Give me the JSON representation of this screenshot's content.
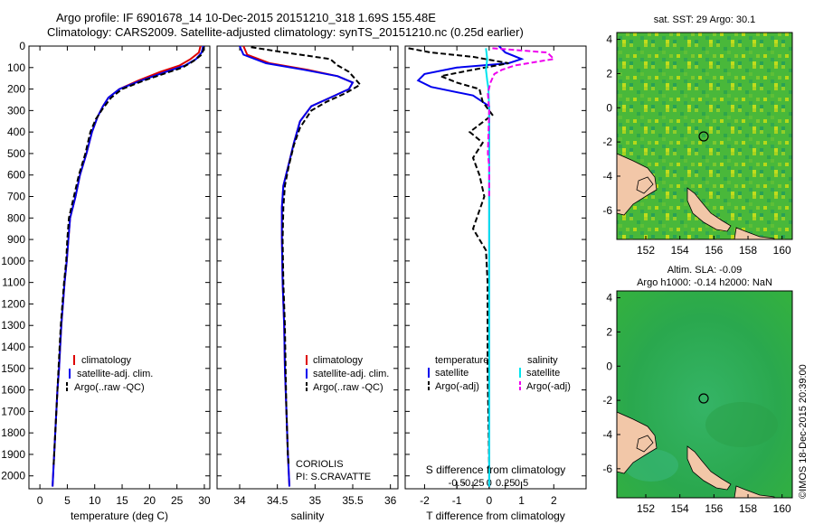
{
  "titles": {
    "line1": "Argo profile: IF 6901678_14 10-Dec-2015 20151210_318 1.69S 155.48E",
    "line2": "Climatology: CARS2009. Satellite-adjusted climatology: synTS_20151210.nc (0.25d earlier)"
  },
  "stamp": "©IMOS 18-Dec-2015 20:39:00",
  "colors": {
    "clim": "#dd0000",
    "sat": "#0000ee",
    "argo": "#000000",
    "sal_sat": "#00e5ee",
    "sal_argo": "#ee00ee",
    "land": "#f2c7a8",
    "sea": "#2fb14c"
  },
  "chart_data": [
    {
      "type": "line",
      "id": "temperature",
      "xlabel": "temperature (deg C)",
      "xlim": [
        -2,
        31
      ],
      "ylim": [
        0,
        2060
      ],
      "xticks": [
        0,
        5,
        10,
        15,
        20,
        25,
        30
      ],
      "yticks": [
        0,
        100,
        200,
        300,
        400,
        500,
        600,
        700,
        800,
        900,
        1000,
        1100,
        1200,
        1300,
        1400,
        1500,
        1600,
        1700,
        1800,
        1900,
        2000
      ],
      "legend": [
        "climatology",
        "satellite-adj. clim.",
        "Argo(..raw -QC)"
      ],
      "series": [
        {
          "name": "climatology",
          "style": "clim",
          "points": [
            [
              29.3,
              0
            ],
            [
              29.0,
              30
            ],
            [
              27.5,
              60
            ],
            [
              25.5,
              90
            ],
            [
              22,
              120
            ],
            [
              18,
              160
            ],
            [
              14.5,
              200
            ],
            [
              12.5,
              240
            ],
            [
              11.5,
              280
            ],
            [
              10.5,
              330
            ],
            [
              9.5,
              400
            ],
            [
              8.5,
              500
            ],
            [
              7.3,
              600
            ],
            [
              6.5,
              700
            ],
            [
              5.5,
              800
            ],
            [
              5.2,
              900
            ],
            [
              4.9,
              1000
            ],
            [
              4.5,
              1100
            ],
            [
              4.2,
              1200
            ],
            [
              3.9,
              1300
            ],
            [
              3.7,
              1400
            ],
            [
              3.5,
              1500
            ],
            [
              3.2,
              1600
            ],
            [
              3.0,
              1700
            ],
            [
              2.8,
              1800
            ],
            [
              2.6,
              1900
            ],
            [
              2.4,
              2000
            ],
            [
              2.3,
              2050
            ]
          ]
        },
        {
          "name": "satellite-adj. clim.",
          "style": "sat",
          "points": [
            [
              29.8,
              0
            ],
            [
              29.5,
              30
            ],
            [
              28.5,
              60
            ],
            [
              26.5,
              90
            ],
            [
              23,
              120
            ],
            [
              18.5,
              160
            ],
            [
              14.5,
              200
            ],
            [
              12.5,
              240
            ],
            [
              11.5,
              280
            ],
            [
              10.5,
              330
            ],
            [
              9.5,
              400
            ],
            [
              8.5,
              500
            ],
            [
              7.3,
              600
            ],
            [
              6.5,
              700
            ],
            [
              5.5,
              800
            ],
            [
              5.2,
              900
            ],
            [
              4.9,
              1000
            ],
            [
              4.5,
              1100
            ],
            [
              4.2,
              1200
            ],
            [
              3.9,
              1300
            ],
            [
              3.7,
              1400
            ],
            [
              3.5,
              1500
            ],
            [
              3.2,
              1600
            ],
            [
              3.0,
              1700
            ],
            [
              2.8,
              1800
            ],
            [
              2.6,
              1900
            ],
            [
              2.4,
              2000
            ],
            [
              2.3,
              2050
            ]
          ]
        },
        {
          "name": "Argo(..raw -QC)",
          "style": "argo",
          "points": [
            [
              29.9,
              5
            ],
            [
              29.8,
              20
            ],
            [
              29.5,
              40
            ],
            [
              28,
              70
            ],
            [
              26,
              100
            ],
            [
              22.5,
              130
            ],
            [
              19,
              160
            ],
            [
              15,
              200
            ],
            [
              13,
              240
            ],
            [
              11.5,
              290
            ],
            [
              10.2,
              340
            ],
            [
              9.2,
              400
            ],
            [
              8.3,
              500
            ],
            [
              7.1,
              600
            ],
            [
              6.2,
              700
            ],
            [
              5.3,
              800
            ],
            [
              5.0,
              900
            ],
            [
              4.8,
              1000
            ],
            [
              4.4,
              1100
            ],
            [
              4.1,
              1200
            ],
            [
              3.8,
              1300
            ],
            [
              3.6,
              1400
            ],
            [
              3.4,
              1500
            ],
            [
              3.2,
              1600
            ],
            [
              3.0,
              1700
            ],
            [
              2.8,
              1800
            ],
            [
              2.6,
              1900
            ],
            [
              2.5,
              1950
            ]
          ]
        }
      ]
    },
    {
      "type": "line",
      "id": "salinity",
      "xlabel": "salinity",
      "xlim": [
        33.7,
        36.1
      ],
      "ylim": [
        0,
        2060
      ],
      "xticks": [
        34,
        34.5,
        35,
        35.5,
        36
      ],
      "legend": [
        "climatology",
        "satellite-adj. clim.",
        "Argo(..raw -QC)"
      ],
      "annotation": [
        "CORIOLIS",
        "PI: S.CRAVATTE"
      ],
      "series": [
        {
          "name": "climatology",
          "style": "clim",
          "points": [
            [
              34.05,
              0
            ],
            [
              34.1,
              40
            ],
            [
              34.4,
              80
            ],
            [
              34.9,
              110
            ],
            [
              35.3,
              140
            ],
            [
              35.5,
              170
            ],
            [
              35.45,
              200
            ],
            [
              35.2,
              240
            ],
            [
              34.95,
              280
            ],
            [
              34.8,
              350
            ],
            [
              34.72,
              450
            ],
            [
              34.65,
              550
            ],
            [
              34.58,
              650
            ],
            [
              34.56,
              750
            ],
            [
              34.56,
              900
            ],
            [
              34.57,
              1100
            ],
            [
              34.59,
              1300
            ],
            [
              34.6,
              1500
            ],
            [
              34.62,
              1700
            ],
            [
              34.64,
              1900
            ],
            [
              34.66,
              2050
            ]
          ]
        },
        {
          "name": "satellite-adj. clim.",
          "style": "sat",
          "points": [
            [
              34.0,
              0
            ],
            [
              34.05,
              40
            ],
            [
              34.35,
              80
            ],
            [
              34.85,
              110
            ],
            [
              35.3,
              140
            ],
            [
              35.5,
              170
            ],
            [
              35.45,
              200
            ],
            [
              35.2,
              240
            ],
            [
              34.95,
              280
            ],
            [
              34.8,
              350
            ],
            [
              34.72,
              450
            ],
            [
              34.65,
              550
            ],
            [
              34.58,
              650
            ],
            [
              34.56,
              750
            ],
            [
              34.56,
              900
            ],
            [
              34.57,
              1100
            ],
            [
              34.59,
              1300
            ],
            [
              34.6,
              1500
            ],
            [
              34.62,
              1700
            ],
            [
              34.64,
              1900
            ],
            [
              34.66,
              2050
            ]
          ]
        },
        {
          "name": "Argo(..raw -QC)",
          "style": "argo",
          "points": [
            [
              34.15,
              5
            ],
            [
              34.6,
              30
            ],
            [
              35.2,
              60
            ],
            [
              35.3,
              90
            ],
            [
              35.45,
              120
            ],
            [
              35.6,
              180
            ],
            [
              35.4,
              220
            ],
            [
              35.15,
              260
            ],
            [
              34.95,
              300
            ],
            [
              34.8,
              380
            ],
            [
              34.72,
              460
            ],
            [
              34.65,
              560
            ],
            [
              34.6,
              650
            ],
            [
              34.58,
              750
            ],
            [
              34.57,
              900
            ],
            [
              34.58,
              1100
            ],
            [
              34.6,
              1300
            ],
            [
              34.61,
              1500
            ],
            [
              34.62,
              1700
            ],
            [
              34.64,
              1900
            ],
            [
              34.65,
              1950
            ]
          ]
        }
      ]
    },
    {
      "type": "line",
      "id": "differences",
      "xlabel": "T difference from climatology",
      "xlabel_top": "S difference from climatology",
      "xlim": [
        -2.6,
        3.0
      ],
      "ylim": [
        0,
        2060
      ],
      "xticks_T": [
        -2,
        -1,
        0,
        1,
        2
      ],
      "xticks_S": [
        -0.5,
        -0.25,
        0,
        0.25,
        0.5
      ],
      "xtick_labels_S": [
        "-0.5",
        "-0.25",
        "0",
        "0.25",
        "0.5"
      ],
      "legend_T_header": "temperature",
      "legend_S_header": "salinity",
      "legend": [
        "satellite",
        "Argo(-adj)",
        "satellite",
        "Argo(-adj)"
      ],
      "series": [
        {
          "name": "T satellite",
          "style": "sat",
          "points": [
            [
              0.3,
              0
            ],
            [
              0.5,
              30
            ],
            [
              1.0,
              60
            ],
            [
              0.6,
              80
            ],
            [
              -1.0,
              100
            ],
            [
              -2.0,
              130
            ],
            [
              -2.2,
              160
            ],
            [
              -1.8,
              190
            ],
            [
              -0.5,
              230
            ],
            [
              0,
              280
            ],
            [
              0,
              400
            ],
            [
              0,
              600
            ],
            [
              0,
              1000
            ],
            [
              0,
              1500
            ],
            [
              0,
              2050
            ]
          ]
        },
        {
          "name": "T Argo(-adj)",
          "style": "argo",
          "points": [
            [
              -2.5,
              10
            ],
            [
              -1.8,
              30
            ],
            [
              -0.5,
              50
            ],
            [
              0.6,
              80
            ],
            [
              -0.5,
              110
            ],
            [
              -1.5,
              140
            ],
            [
              -1.0,
              170
            ],
            [
              -0.3,
              200
            ],
            [
              -0.2,
              260
            ],
            [
              0.1,
              320
            ],
            [
              -0.6,
              400
            ],
            [
              -0.2,
              450
            ],
            [
              -0.5,
              520
            ],
            [
              -0.3,
              600
            ],
            [
              -0.15,
              700
            ],
            [
              -0.5,
              850
            ],
            [
              -0.1,
              950
            ],
            [
              -0.05,
              1100
            ],
            [
              -0.05,
              1500
            ],
            [
              0,
              1950
            ]
          ]
        },
        {
          "name": "S satellite",
          "style": "sal_sat",
          "points": [
            [
              -0.05,
              10
            ],
            [
              -0.03,
              60
            ],
            [
              -0.05,
              110
            ],
            [
              -0.03,
              160
            ],
            [
              -0.01,
              200
            ],
            [
              0,
              300
            ],
            [
              0,
              500
            ],
            [
              0,
              800
            ],
            [
              0,
              1200
            ],
            [
              0,
              1600
            ],
            [
              0,
              2050
            ]
          ]
        },
        {
          "name": "S Argo(-adj)",
          "style": "sal_argo",
          "points": [
            [
              0.05,
              10
            ],
            [
              0.9,
              30
            ],
            [
              1.0,
              60
            ],
            [
              0.4,
              90
            ],
            [
              0.2,
              110
            ],
            [
              0.08,
              130
            ],
            [
              0.02,
              170
            ],
            [
              -0.02,
              220
            ],
            [
              0,
              300
            ],
            [
              -0.02,
              500
            ],
            [
              0,
              560
            ],
            [
              0,
              700
            ]
          ]
        }
      ]
    }
  ],
  "map_top": {
    "title": "sat. SST: 29 Argo: 30.1",
    "xticks": [
      152,
      154,
      156,
      158,
      160
    ],
    "yticks": [
      4,
      2,
      0,
      -2,
      -4,
      -6
    ],
    "marker": [
      155.48,
      -1.69
    ]
  },
  "map_bottom": {
    "title1": "Altim. SLA: -0.09",
    "title2": "Argo h1000: -0.14 h2000: NaN",
    "xticks": [
      152,
      154,
      156,
      158,
      160
    ],
    "yticks": [
      4,
      2,
      0,
      -2,
      -4,
      -6
    ],
    "marker": [
      155.48,
      -1.69
    ]
  }
}
